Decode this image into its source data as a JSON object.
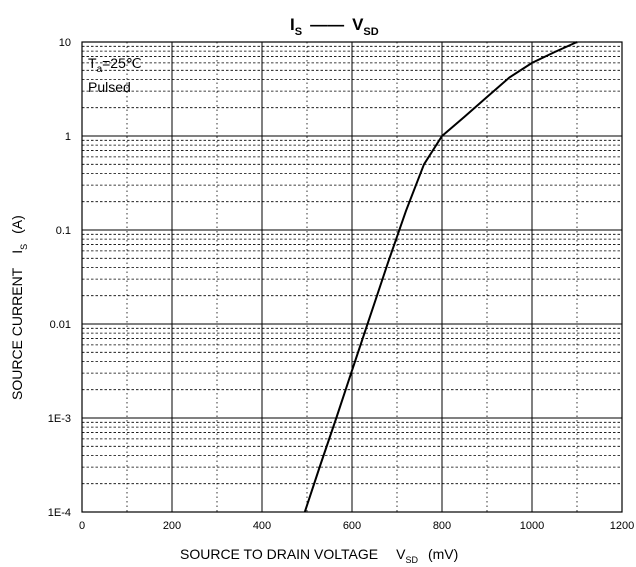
{
  "chart_data": {
    "type": "line",
    "title": {
      "left_main": "I",
      "left_sub": "S",
      "connector": "——",
      "right_main": "V",
      "right_sub": "SD"
    },
    "xlabel": {
      "text": "SOURCE TO DRAIN VOLTAGE",
      "symbol": "V",
      "symbol_sub": "SD",
      "unit": "(mV)"
    },
    "ylabel": {
      "text": "SOURCE CURRENT",
      "symbol": "I",
      "symbol_sub": "S",
      "unit": "(A)"
    },
    "xlim": [
      0,
      1200
    ],
    "ylim": [
      0.0001,
      10
    ],
    "y_scale": "log",
    "grid": true,
    "x_ticks": [
      {
        "value": 0,
        "label": "0"
      },
      {
        "value": 200,
        "label": "200"
      },
      {
        "value": 400,
        "label": "400"
      },
      {
        "value": 600,
        "label": "600"
      },
      {
        "value": 800,
        "label": "800"
      },
      {
        "value": 1000,
        "label": "1000"
      },
      {
        "value": 1200,
        "label": "1200"
      }
    ],
    "y_ticks": [
      {
        "value": 10,
        "label": "10"
      },
      {
        "value": 1,
        "label": "1"
      },
      {
        "value": 0.1,
        "label": "0.1"
      },
      {
        "value": 0.01,
        "label": "0.01"
      },
      {
        "value": 0.001,
        "label": "1E-3"
      },
      {
        "value": 0.0001,
        "label": "1E-4"
      }
    ],
    "annotation": {
      "line1_main": "T",
      "line1_sub": "a",
      "line1_rest": "=25℃",
      "line2": "Pulsed"
    },
    "series": [
      {
        "x": [
          495,
          530,
          565,
          600,
          640,
          680,
          720,
          760,
          800,
          850,
          900,
          950,
          1000,
          1050,
          1100
        ],
        "y": [
          0.0001,
          0.00032,
          0.001,
          0.0032,
          0.012,
          0.045,
          0.16,
          0.5,
          1.0,
          1.6,
          2.6,
          4.2,
          6.0,
          7.8,
          10
        ]
      }
    ]
  }
}
